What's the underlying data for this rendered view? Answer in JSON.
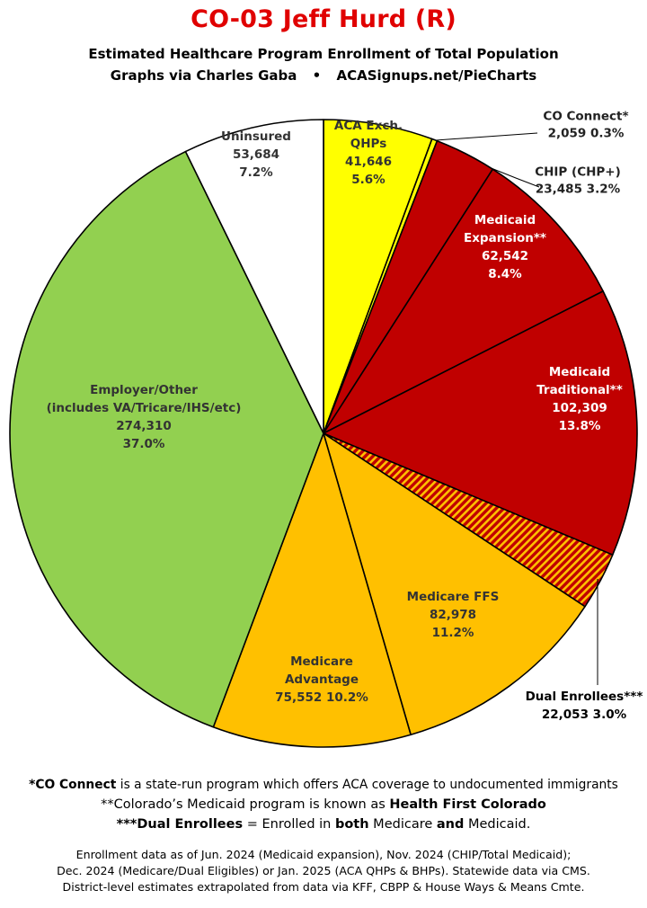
{
  "title": "CO-03 Jeff Hurd (R)",
  "subtitle": "Estimated Healthcare Program Enrollment of Total Population",
  "credit_left": "Graphs via Charles Gaba",
  "credit_sep": "•",
  "credit_right": "ACASignups.net/PieCharts",
  "chart_data": {
    "type": "pie",
    "title": "CO-03 Jeff Hurd (R)",
    "start_angle_deg": 0,
    "direction": "clockwise",
    "slices": [
      {
        "key": "aca",
        "lines": [
          "ACA Exch.",
          "QHPs",
          "41,646",
          "5.6%"
        ],
        "value": 41646,
        "percent": 5.6,
        "color": "#ffff00",
        "pattern": "none",
        "label_color": "#333333"
      },
      {
        "key": "coconnect",
        "lines": [
          "CO Connect*",
          "2,059 0.3%"
        ],
        "value": 2059,
        "percent": 0.3,
        "color": "#ffff00",
        "pattern": "none",
        "label_color": "#222222",
        "external": true
      },
      {
        "key": "chip",
        "lines": [
          "CHIP (CHP+)",
          "23,485 3.2%"
        ],
        "value": 23485,
        "percent": 3.2,
        "color": "#c00000",
        "pattern": "none",
        "label_color": "#222222",
        "external": true
      },
      {
        "key": "expansion",
        "lines": [
          "Medicaid",
          "Expansion**",
          "62,542",
          "8.4%"
        ],
        "value": 62542,
        "percent": 8.4,
        "color": "#c00000",
        "pattern": "none",
        "label_color": "#ffffff"
      },
      {
        "key": "traditional",
        "lines": [
          "Medicaid",
          "Traditional**",
          "102,309",
          "13.8%"
        ],
        "value": 102309,
        "percent": 13.8,
        "color": "#c00000",
        "pattern": "none",
        "label_color": "#ffffff"
      },
      {
        "key": "dual",
        "lines": [
          "Dual Enrollees***",
          "22,053 3.0%"
        ],
        "value": 22053,
        "percent": 3.0,
        "color": "#c00000",
        "pattern": "hatch",
        "hatch_color": "#ffc000",
        "label_color": "#000000",
        "external": true
      },
      {
        "key": "ffs",
        "lines": [
          "Medicare FFS",
          "82,978",
          "11.2%"
        ],
        "value": 82978,
        "percent": 11.2,
        "color": "#ffc000",
        "pattern": "none",
        "label_color": "#333333"
      },
      {
        "key": "advantage",
        "lines": [
          "Medicare",
          "Advantage",
          "75,552 10.2%"
        ],
        "value": 75552,
        "percent": 10.2,
        "color": "#ffc000",
        "pattern": "none",
        "label_color": "#333333"
      },
      {
        "key": "employer",
        "lines": [
          "Employer/Other",
          "(includes VA/Tricare/IHS/etc)",
          "274,310",
          "37.0%"
        ],
        "value": 274310,
        "percent": 37.0,
        "color": "#92d050",
        "pattern": "none",
        "label_color": "#333333"
      },
      {
        "key": "uninsured",
        "lines": [
          "Uninsured",
          "53,684",
          "7.2%"
        ],
        "value": 53684,
        "percent": 7.2,
        "color": "#ffffff",
        "pattern": "none",
        "label_color": "#333333"
      }
    ]
  },
  "footnotes": {
    "fn1_bold": "*CO Connect",
    "fn1_rest": " is a state-run program which offers ACA coverage to undocumented immigrants",
    "fn2_a": "**Colorado’s Medicaid program is known as ",
    "fn2_bold": "Health First Colorado",
    "fn3_bold1": "***Dual Enrollees",
    "fn3_a": " = Enrolled in ",
    "fn3_bold2": "both",
    "fn3_b": " Medicare ",
    "fn3_bold3": "and",
    "fn3_c": " Medicaid."
  },
  "source_lines": [
    "Enrollment data as of Jun. 2024 (Medicaid expansion), Nov. 2024 (CHIP/Total Medicaid);",
    "Dec. 2024 (Medicare/Dual Eligibles) or Jan. 2025 (ACA QHPs & BHPs). Statewide data via CMS.",
    "District-level estimates extrapolated from data via KFF, CBPP & House Ways & Means Cmte."
  ]
}
